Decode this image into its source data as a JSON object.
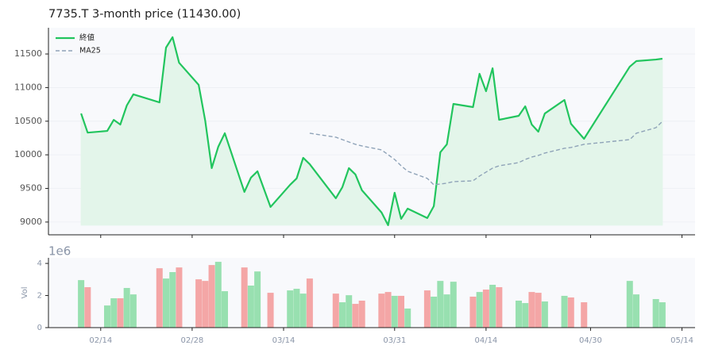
{
  "chart_data": [
    {
      "type": "line",
      "title": "7735.T  3-month price (11430.00)",
      "x": [
        "02/11",
        "02/12",
        "02/15",
        "02/16",
        "02/17",
        "02/18",
        "02/19",
        "02/23",
        "02/24",
        "02/25",
        "02/26",
        "03/01",
        "03/02",
        "03/03",
        "03/04",
        "03/05",
        "03/08",
        "03/09",
        "03/10",
        "03/12",
        "03/15",
        "03/16",
        "03/17",
        "03/18",
        "03/22",
        "03/23",
        "03/24",
        "03/25",
        "03/26",
        "03/29",
        "03/30",
        "03/31",
        "04/01",
        "04/02",
        "04/05",
        "04/06",
        "04/07",
        "04/08",
        "04/09",
        "04/12",
        "04/13",
        "04/14",
        "04/15",
        "04/16",
        "04/19",
        "04/20",
        "04/21",
        "04/22",
        "04/23",
        "04/26",
        "04/27",
        "04/29",
        "05/06",
        "05/07",
        "05/10",
        "05/11"
      ],
      "series": [
        {
          "name": "終値",
          "color": "#22c55e",
          "fill": "#e3f5ea",
          "values": [
            10615,
            10330,
            10355,
            10520,
            10450,
            10735,
            10900,
            10780,
            11595,
            11750,
            11370,
            11040,
            10509,
            9802,
            10120,
            10321,
            9448,
            9660,
            9755,
            9224,
            9554,
            9649,
            9955,
            9861,
            9354,
            9519,
            9802,
            9708,
            9472,
            9142,
            8953,
            9436,
            9047,
            9200,
            9059,
            9236,
            10038,
            10156,
            10757,
            10710,
            11205,
            10946,
            11288,
            10521,
            10580,
            10722,
            10450,
            10344,
            10615,
            10816,
            10462,
            10238,
            11311,
            11394,
            11417,
            11430
          ]
        },
        {
          "name": "MA25",
          "color": "#8fa3b8",
          "dashed": true,
          "values": [
            null,
            null,
            null,
            null,
            null,
            null,
            null,
            null,
            null,
            null,
            null,
            null,
            null,
            null,
            null,
            null,
            null,
            null,
            null,
            null,
            null,
            null,
            null,
            10321,
            10262,
            10226,
            10191,
            10156,
            10132,
            10073,
            10002,
            9931,
            9837,
            9755,
            9649,
            9554,
            9566,
            9578,
            9601,
            9613,
            9684,
            9743,
            9802,
            9837,
            9884,
            9931,
            9967,
            9991,
            10026,
            10097,
            10109,
            10156,
            10226,
            10321,
            10403,
            10498
          ]
        }
      ],
      "xlim": [
        "02/06",
        "05/16"
      ],
      "ylim": [
        8810,
        11890
      ],
      "yticks": [
        9000,
        9500,
        10000,
        10500,
        11000,
        11500
      ],
      "grid": true,
      "legend": "upper-left"
    },
    {
      "type": "bar",
      "y_label": "Vol",
      "offset_label": "1e6",
      "x": [
        "02/11",
        "02/12",
        "02/15",
        "02/16",
        "02/17",
        "02/18",
        "02/19",
        "02/23",
        "02/24",
        "02/25",
        "02/26",
        "03/01",
        "03/02",
        "03/03",
        "03/04",
        "03/05",
        "03/08",
        "03/09",
        "03/10",
        "03/12",
        "03/15",
        "03/16",
        "03/17",
        "03/18",
        "03/22",
        "03/23",
        "03/24",
        "03/25",
        "03/26",
        "03/29",
        "03/30",
        "03/31",
        "04/01",
        "04/02",
        "04/05",
        "04/06",
        "04/07",
        "04/08",
        "04/09",
        "04/12",
        "04/13",
        "04/14",
        "04/15",
        "04/16",
        "04/19",
        "04/20",
        "04/21",
        "04/22",
        "04/23",
        "04/26",
        "04/27",
        "04/29",
        "05/06",
        "05/07",
        "05/10",
        "05/11"
      ],
      "values": [
        2.96,
        2.52,
        1.38,
        1.83,
        1.83,
        2.47,
        2.07,
        3.7,
        3.06,
        3.46,
        3.75,
        3.01,
        2.91,
        3.9,
        4.1,
        2.27,
        3.75,
        2.62,
        3.5,
        2.17,
        2.32,
        2.42,
        2.12,
        3.06,
        2.12,
        1.58,
        2.02,
        1.48,
        1.68,
        2.12,
        2.22,
        1.98,
        1.98,
        1.19,
        2.32,
        1.93,
        2.91,
        2.07,
        2.86,
        1.93,
        2.22,
        2.37,
        2.67,
        2.52,
        1.68,
        1.53,
        2.22,
        2.17,
        1.63,
        1.98,
        1.88,
        1.58,
        2.91,
        2.07,
        1.78,
        1.58
      ],
      "colors": [
        "#98e0b0",
        "#f4a6a6",
        "#98e0b0",
        "#98e0b0",
        "#f4a6a6",
        "#98e0b0",
        "#98e0b0",
        "#f4a6a6",
        "#98e0b0",
        "#98e0b0",
        "#f4a6a6",
        "#f4a6a6",
        "#f4a6a6",
        "#f4a6a6",
        "#98e0b0",
        "#98e0b0",
        "#f4a6a6",
        "#98e0b0",
        "#98e0b0",
        "#f4a6a6",
        "#98e0b0",
        "#98e0b0",
        "#98e0b0",
        "#f4a6a6",
        "#f4a6a6",
        "#98e0b0",
        "#98e0b0",
        "#f4a6a6",
        "#f4a6a6",
        "#f4a6a6",
        "#f4a6a6",
        "#98e0b0",
        "#f4a6a6",
        "#98e0b0",
        "#f4a6a6",
        "#98e0b0",
        "#98e0b0",
        "#98e0b0",
        "#98e0b0",
        "#f4a6a6",
        "#98e0b0",
        "#f4a6a6",
        "#98e0b0",
        "#f4a6a6",
        "#98e0b0",
        "#98e0b0",
        "#f4a6a6",
        "#f4a6a6",
        "#98e0b0",
        "#98e0b0",
        "#f4a6a6",
        "#f4a6a6",
        "#98e0b0",
        "#98e0b0",
        "#98e0b0",
        "#98e0b0"
      ],
      "xlim": [
        "02/06",
        "05/16"
      ],
      "ylim": [
        0,
        4.35
      ],
      "yticks": [
        0,
        2,
        4
      ],
      "xticks": [
        "02/14",
        "02/28",
        "03/14",
        "03/31",
        "04/14",
        "04/30",
        "05/14"
      ]
    }
  ]
}
